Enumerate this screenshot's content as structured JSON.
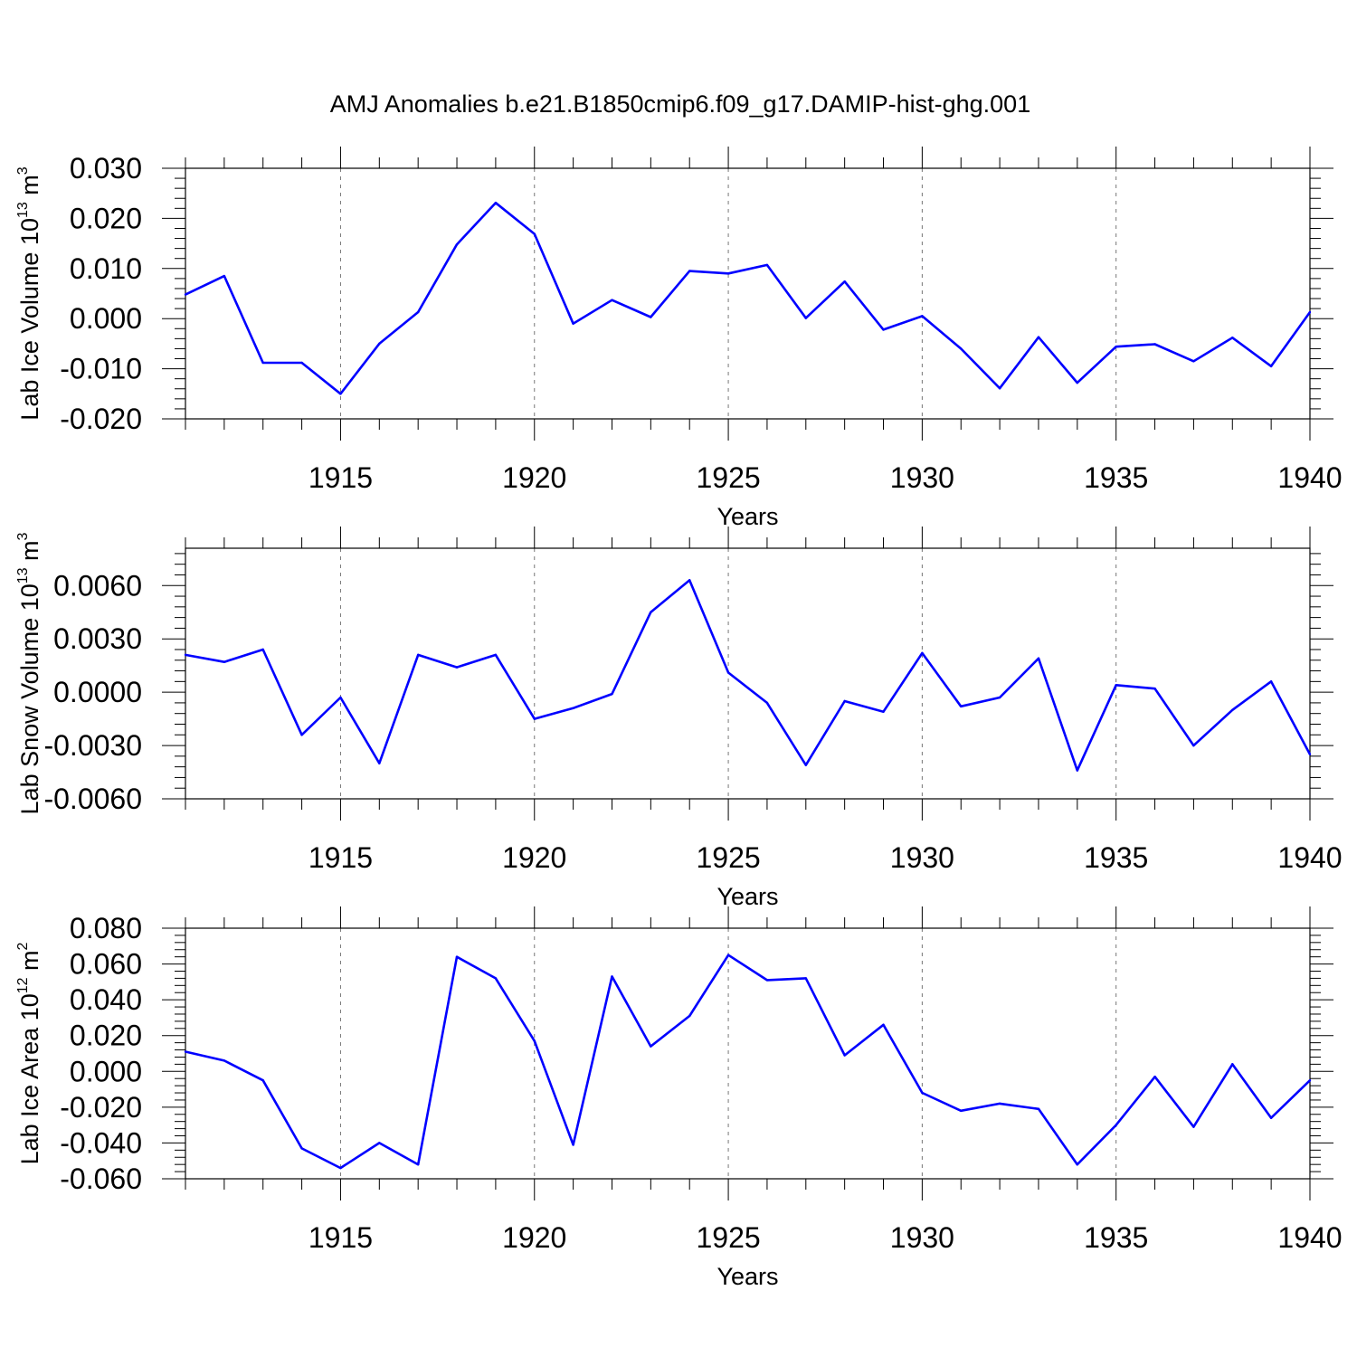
{
  "title": "AMJ Anomalies b.e21.B1850cmip6.f09_g17.DAMIP-hist-ghg.001",
  "colors": {
    "series": "#0000ff",
    "axes": "#000000",
    "grid": "#777777"
  },
  "chart_data": [
    {
      "type": "line",
      "ylabel": {
        "prefix": "Lab Ice Volume 10",
        "exp": "13",
        "unit": " m",
        "unit_exp": "3"
      },
      "xlabel": "Years",
      "xlim": [
        1911,
        1940
      ],
      "ylim": [
        -0.02,
        0.03
      ],
      "xticks": [
        "1915",
        "1920",
        "1925",
        "1930",
        "1935",
        "1940"
      ],
      "yticks": [
        "0.030",
        "0.020",
        "0.010",
        "0.000",
        "-0.010",
        "-0.020"
      ],
      "grid": "vertical dashed at labeled years",
      "x": [
        1911,
        1912,
        1913,
        1914,
        1915,
        1916,
        1917,
        1918,
        1919,
        1920,
        1921,
        1922,
        1923,
        1924,
        1925,
        1926,
        1927,
        1928,
        1929,
        1930,
        1931,
        1932,
        1933,
        1934,
        1935,
        1936,
        1937,
        1938,
        1939,
        1940
      ],
      "values": [
        0.0048,
        0.0085,
        -0.0088,
        -0.0088,
        -0.015,
        -0.005,
        0.0013,
        0.0148,
        0.0231,
        0.0169,
        -0.001,
        0.0037,
        0.0003,
        0.0095,
        0.009,
        0.0107,
        0.0001,
        0.0074,
        -0.0022,
        0.0005,
        -0.006,
        -0.0139,
        -0.0037,
        -0.0128,
        -0.0056,
        -0.0051,
        -0.0085,
        -0.0038,
        -0.0095,
        0.0013
      ]
    },
    {
      "type": "line",
      "ylabel": {
        "prefix": "Lab Snow Volume 10",
        "exp": "13",
        "unit": " m",
        "unit_exp": "3"
      },
      "xlabel": "Years",
      "xlim": [
        1911,
        1940
      ],
      "ylim": [
        -0.006,
        0.0081
      ],
      "xticks": [
        "1915",
        "1920",
        "1925",
        "1930",
        "1935",
        "1940"
      ],
      "yticks": [
        "0.0060",
        "0.0030",
        "0.0000",
        "-0.0030",
        "-0.0060"
      ],
      "grid": "vertical dashed at labeled years",
      "x": [
        1911,
        1912,
        1913,
        1914,
        1915,
        1916,
        1917,
        1918,
        1919,
        1920,
        1921,
        1922,
        1923,
        1924,
        1925,
        1926,
        1927,
        1928,
        1929,
        1930,
        1931,
        1932,
        1933,
        1934,
        1935,
        1936,
        1937,
        1938,
        1939,
        1940
      ],
      "values": [
        0.0021,
        0.0017,
        0.0024,
        -0.0024,
        -0.0003,
        -0.004,
        0.0021,
        0.0014,
        0.0021,
        -0.0015,
        -0.0009,
        -0.0001,
        0.0045,
        0.0063,
        0.0011,
        -0.0006,
        -0.0041,
        -0.0005,
        -0.0011,
        0.0022,
        -0.0008,
        -0.0003,
        0.0019,
        -0.0044,
        0.0004,
        0.0002,
        -0.003,
        -0.001,
        0.0006,
        -0.0035
      ]
    },
    {
      "type": "line",
      "ylabel": {
        "prefix": "Lab Ice Area 10",
        "exp": "12",
        "unit": " m",
        "unit_exp": "2"
      },
      "xlabel": "Years",
      "xlim": [
        1911,
        1940
      ],
      "ylim": [
        -0.06,
        0.08
      ],
      "xticks": [
        "1915",
        "1920",
        "1925",
        "1930",
        "1935",
        "1940"
      ],
      "yticks": [
        "0.080",
        "0.060",
        "0.040",
        "0.020",
        "0.000",
        "-0.020",
        "-0.040",
        "-0.060"
      ],
      "grid": "vertical dashed at labeled years",
      "x": [
        1911,
        1912,
        1913,
        1914,
        1915,
        1916,
        1917,
        1918,
        1919,
        1920,
        1921,
        1922,
        1923,
        1924,
        1925,
        1926,
        1927,
        1928,
        1929,
        1930,
        1931,
        1932,
        1933,
        1934,
        1935,
        1936,
        1937,
        1938,
        1939,
        1940
      ],
      "values": [
        0.011,
        0.006,
        -0.005,
        -0.043,
        -0.054,
        -0.04,
        -0.052,
        0.064,
        0.052,
        0.017,
        -0.041,
        0.053,
        0.014,
        0.031,
        0.065,
        0.051,
        0.052,
        0.009,
        0.026,
        -0.012,
        -0.022,
        -0.018,
        -0.021,
        -0.052,
        -0.03,
        -0.003,
        -0.031,
        0.004,
        -0.026,
        -0.005
      ]
    }
  ]
}
